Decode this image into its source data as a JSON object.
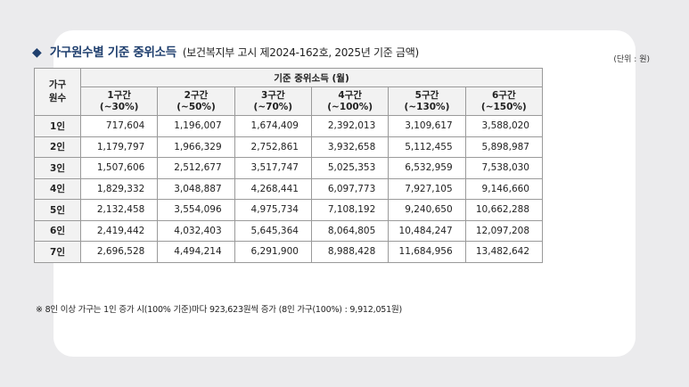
{
  "title": {
    "marker": "◆",
    "main": "가구원수별 기준 중위소득",
    "sub": "(보건복지부 고시 제2024-162호, 2025년 기준 금액)"
  },
  "unit": "(단위 : 원)",
  "table": {
    "corner_header": "가구\n원수",
    "group_header": "기준 중위소득 (월)",
    "columns": [
      {
        "label": "1구간",
        "sub": "(~30%)"
      },
      {
        "label": "2구간",
        "sub": "(~50%)"
      },
      {
        "label": "3구간",
        "sub": "(~70%)"
      },
      {
        "label": "4구간",
        "sub": "(~100%)"
      },
      {
        "label": "5구간",
        "sub": "(~130%)"
      },
      {
        "label": "6구간",
        "sub": "(~150%)"
      }
    ],
    "rows": [
      {
        "label": "1인",
        "values": [
          "717,604",
          "1,196,007",
          "1,674,409",
          "2,392,013",
          "3,109,617",
          "3,588,020"
        ]
      },
      {
        "label": "2인",
        "values": [
          "1,179,797",
          "1,966,329",
          "2,752,861",
          "3,932,658",
          "5,112,455",
          "5,898,987"
        ]
      },
      {
        "label": "3인",
        "values": [
          "1,507,606",
          "2,512,677",
          "3,517,747",
          "5,025,353",
          "6,532,959",
          "7,538,030"
        ]
      },
      {
        "label": "4인",
        "values": [
          "1,829,332",
          "3,048,887",
          "4,268,441",
          "6,097,773",
          "7,927,105",
          "9,146,660"
        ]
      },
      {
        "label": "5인",
        "values": [
          "2,132,458",
          "3,554,096",
          "4,975,734",
          "7,108,192",
          "9,240,650",
          "10,662,288"
        ]
      },
      {
        "label": "6인",
        "values": [
          "2,419,442",
          "4,032,403",
          "5,645,364",
          "8,064,805",
          "10,484,247",
          "12,097,208"
        ]
      },
      {
        "label": "7인",
        "values": [
          "2,696,528",
          "4,494,214",
          "6,291,900",
          "8,988,428",
          "11,684,956",
          "13,482,642"
        ]
      }
    ]
  },
  "note": "※ 8인 이상 가구는 1인 증가 시(100% 기준)마다 923,623원씩 증가 (8인 가구(100%) : 9,912,051원)"
}
